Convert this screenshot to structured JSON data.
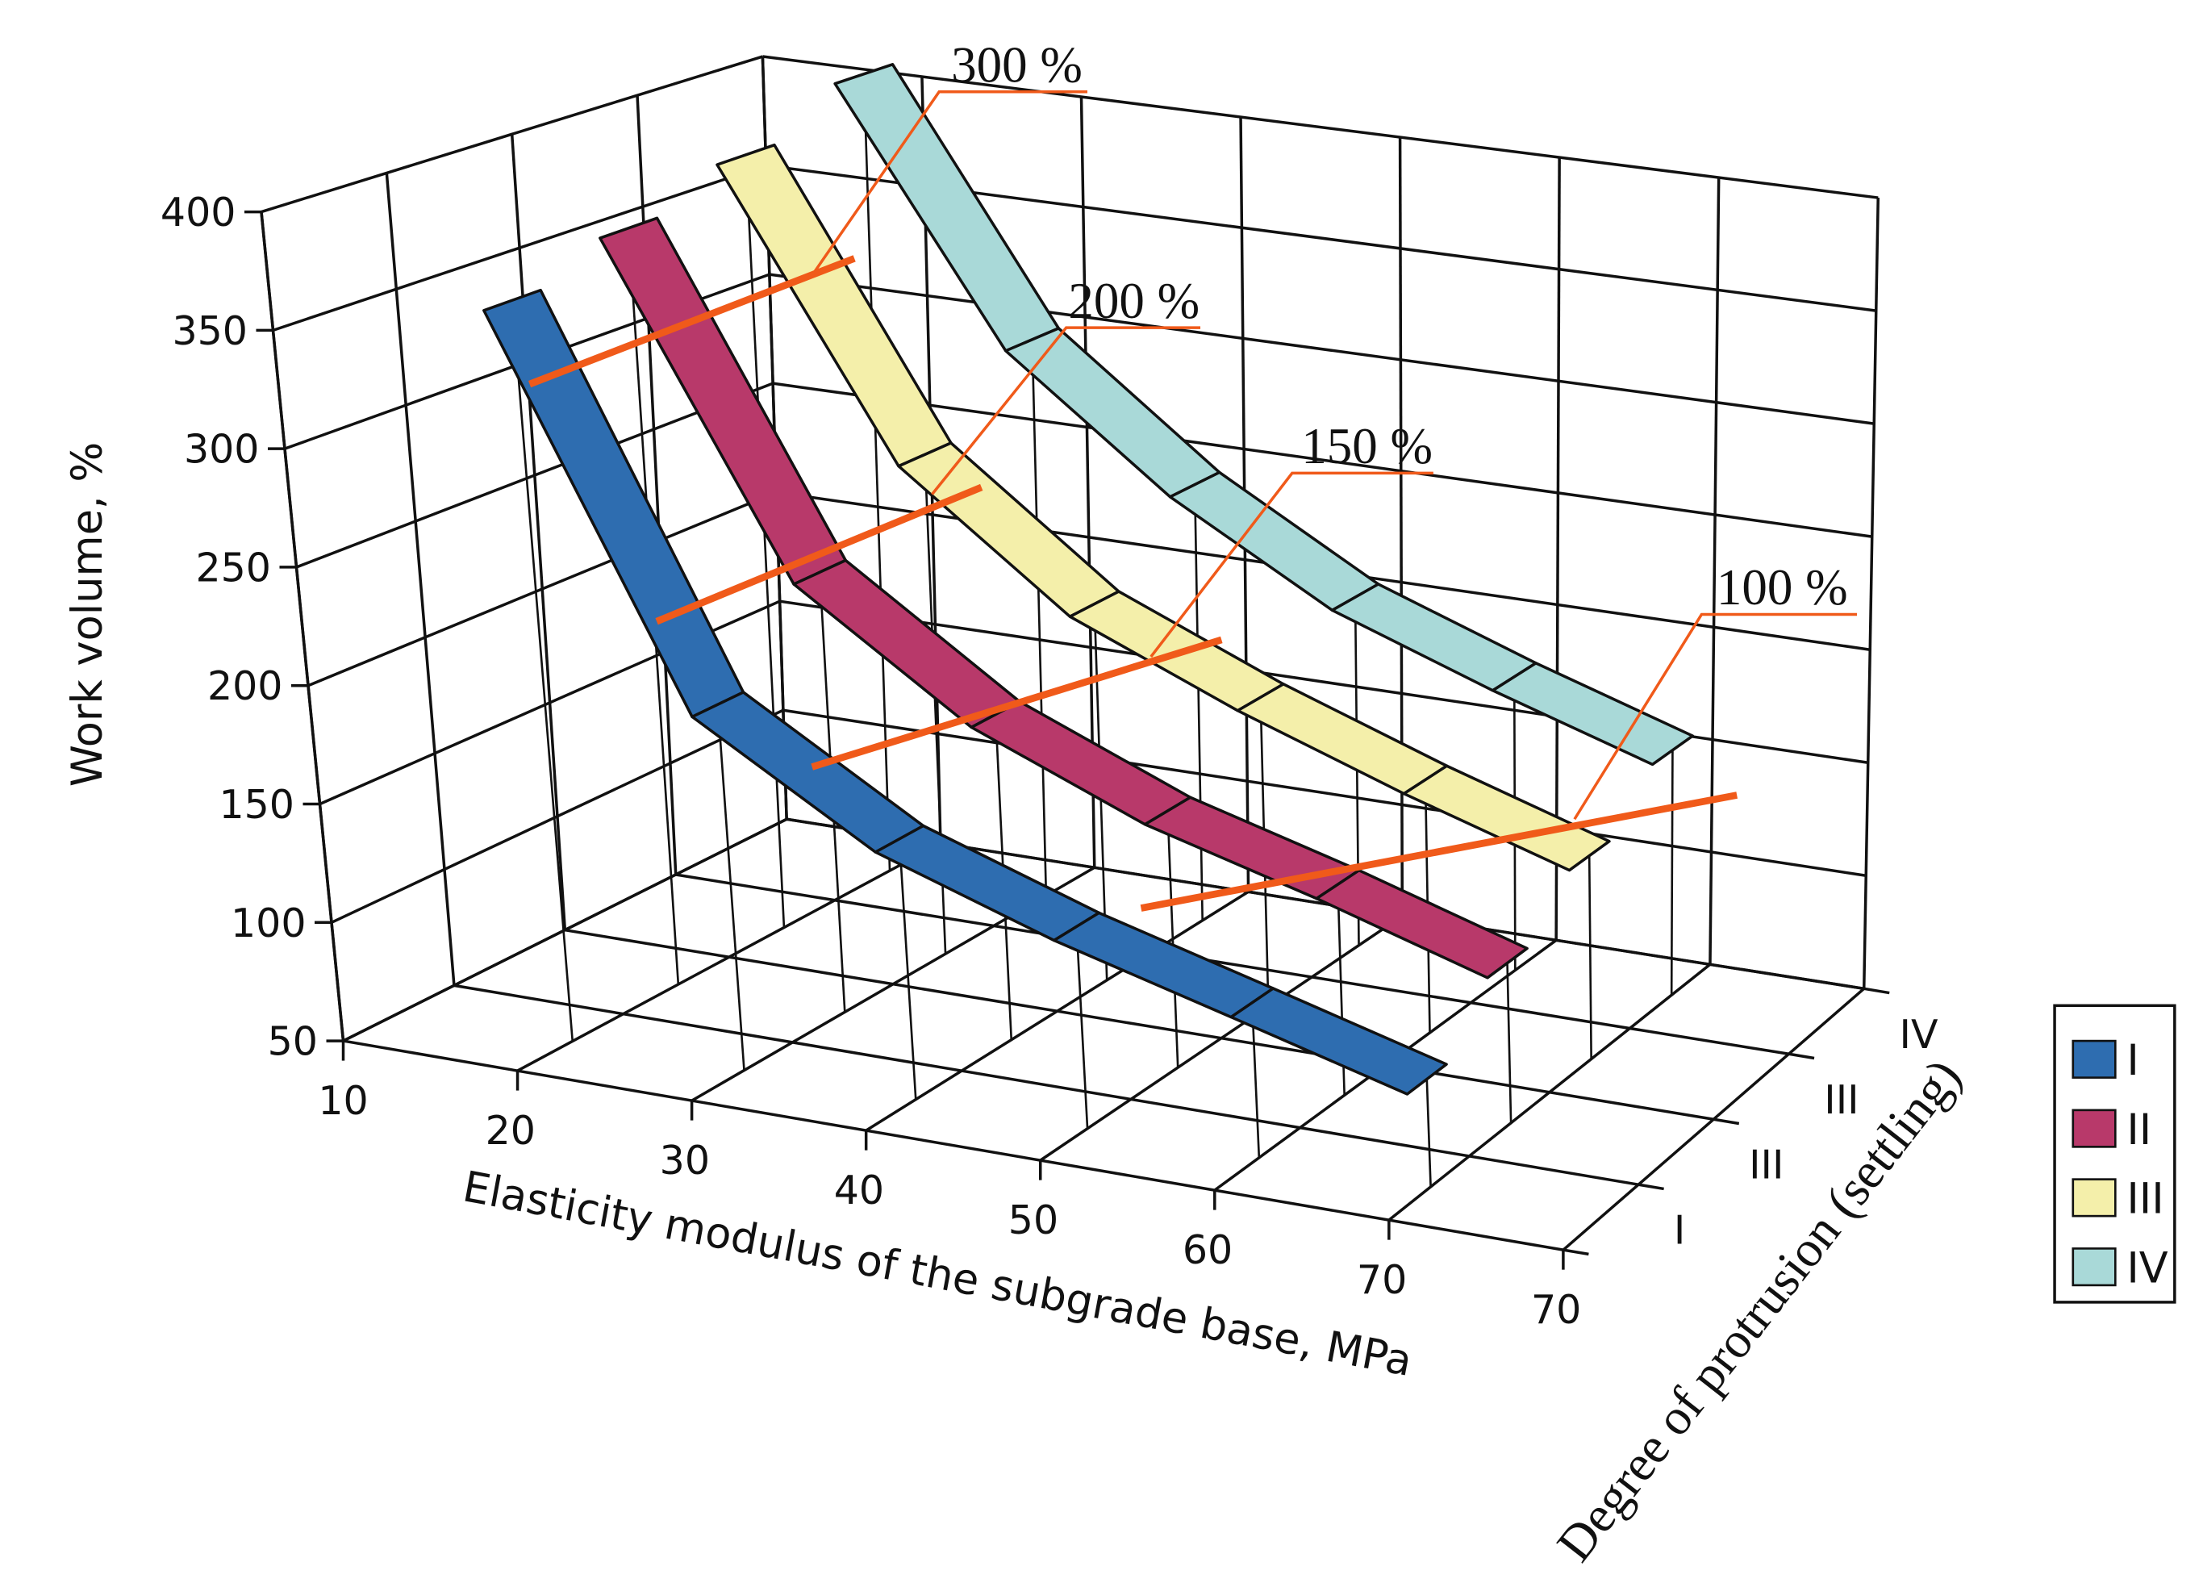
{
  "chart_data": {
    "type": "3d-ribbon",
    "title": "",
    "ylabel": "Work volume, %",
    "xlabel": "Elasticity modulus of the subgrade base, MPa",
    "zlabel": "Degree of protrusion (settling)",
    "ylim": [
      50,
      400
    ],
    "y_ticks": [
      "400",
      "350",
      "300",
      "250",
      "200",
      "150",
      "100",
      "50"
    ],
    "x_ticks": [
      "10",
      "20",
      "30",
      "40",
      "50",
      "60",
      "70",
      "70"
    ],
    "z_ticks": [
      "I",
      "III",
      "III",
      "IV"
    ],
    "grid": true,
    "legend_position": "right",
    "x": [
      20,
      30,
      40,
      50,
      60,
      70
    ],
    "series": [
      {
        "name": "I",
        "color": "#2e6db0",
        "values": [
          365,
          205,
          160,
          135,
          115,
          95
        ]
      },
      {
        "name": "II",
        "color": "#b8396a",
        "values": [
          378,
          240,
          190,
          160,
          140,
          118
        ]
      },
      {
        "name": "III",
        "color": "#f4efaa",
        "values": [
          392,
          270,
          215,
          185,
          160,
          138
        ]
      },
      {
        "name": "IV",
        "color": "#a9d9d8",
        "values": [
          410,
          300,
          245,
          205,
          180,
          158
        ]
      }
    ],
    "annotations": [
      {
        "text": "300 %"
      },
      {
        "text": "200 %"
      },
      {
        "text": "150 %"
      },
      {
        "text": "100 %"
      }
    ],
    "annotation_color": "#f05a1a"
  }
}
